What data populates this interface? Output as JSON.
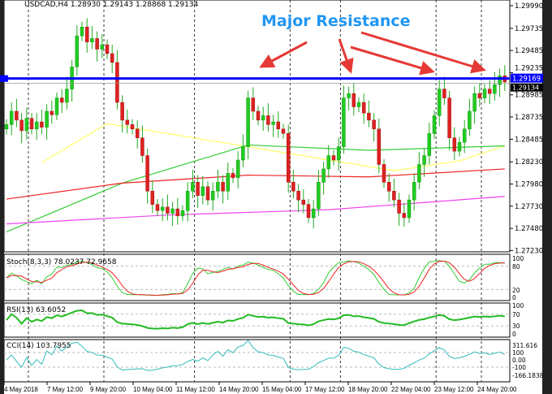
{
  "window": {
    "title": "USDCAD,H4 1.28930 1.29143 1.28868 1.29134"
  },
  "annotation": {
    "label": "Major Resistance",
    "color": "#2196F3",
    "arrow_color": "#E53935"
  },
  "resistance": {
    "price": 1.29169,
    "label": "1.29169",
    "last_label": "1.29134",
    "color": "#0000FF"
  },
  "chart_data": {
    "type": "candlestick",
    "symbol": "USDCAD,H4",
    "ylim": [
      1.2723,
      1.2999
    ],
    "yticks": [
      "1.29990",
      "1.29735",
      "1.29485",
      "1.29235",
      "1.28985",
      "1.28735",
      "1.28485",
      "1.28230",
      "1.27980",
      "1.27730",
      "1.27480",
      "1.27230"
    ],
    "xticks": [
      {
        "i": 0,
        "label": "4 May 2018"
      },
      {
        "i": 9,
        "label": "7 May 12:00"
      },
      {
        "i": 19,
        "label": "9 May 20:00"
      },
      {
        "i": 28,
        "label": "10 May 04:00"
      },
      {
        "i": 38,
        "label": "11 May 12:00"
      },
      {
        "i": 48,
        "label": "14 May 20:00"
      },
      {
        "i": 57,
        "label": "15 May 04:00"
      },
      {
        "i": 67,
        "label": "17 May 12:00"
      },
      {
        "i": 76,
        "label": "18 May 20:00"
      },
      {
        "i": 86,
        "label": "22 May 04:00"
      },
      {
        "i": 95,
        "label": "23 May 12:00"
      },
      {
        "i": 104,
        "label": "24 May 20:00"
      }
    ],
    "closes": [
      1.2865,
      1.288,
      1.287,
      1.2858,
      1.2872,
      1.286,
      1.2868,
      1.2862,
      1.288,
      1.2876,
      1.2895,
      1.289,
      1.2905,
      1.293,
      1.2965,
      1.2975,
      1.2958,
      1.2962,
      1.295,
      1.2955,
      1.2945,
      1.2935,
      1.289,
      1.287,
      1.2865,
      1.286,
      1.285,
      1.283,
      1.279,
      1.2775,
      1.2768,
      1.2772,
      1.2765,
      1.277,
      1.2762,
      1.2768,
      1.279,
      1.28,
      1.2785,
      1.2795,
      1.278,
      1.279,
      1.28,
      1.279,
      1.281,
      1.2805,
      1.2825,
      1.284,
      1.2895,
      1.288,
      1.287,
      1.2875,
      1.2865,
      1.2868,
      1.286,
      1.2855,
      1.28,
      1.279,
      1.278,
      1.2775,
      1.276,
      1.277,
      1.28,
      1.2815,
      1.283,
      1.2825,
      1.284,
      1.2895,
      1.29,
      1.2885,
      1.289,
      1.2878,
      1.287,
      1.286,
      1.282,
      1.28,
      1.279,
      1.278,
      1.2765,
      1.276,
      1.278,
      1.28,
      1.282,
      1.283,
      1.2855,
      1.2875,
      1.2905,
      1.2895,
      1.285,
      1.2835,
      1.2845,
      1.286,
      1.288,
      1.29,
      1.2895,
      1.2905,
      1.29,
      1.291,
      1.292,
      1.2913
    ],
    "moving_averages": [
      {
        "color": "#FFFF66",
        "points": [
          [
            7,
            1.2822
          ],
          [
            20,
            1.2866
          ],
          [
            48,
            1.284
          ],
          [
            77,
            1.2813
          ],
          [
            90,
            1.2824
          ],
          [
            99,
            1.2841
          ]
        ]
      },
      {
        "color": "#33CC33",
        "points": [
          [
            0,
            1.2744
          ],
          [
            23,
            1.2799
          ],
          [
            48,
            1.2842
          ],
          [
            72,
            1.2836
          ],
          [
            99,
            1.2841
          ]
        ]
      },
      {
        "color": "#EE2222",
        "points": [
          [
            0,
            1.2781
          ],
          [
            23,
            1.2799
          ],
          [
            48,
            1.2808
          ],
          [
            72,
            1.2806
          ],
          [
            99,
            1.2815
          ]
        ]
      },
      {
        "color": "#EE44EE",
        "points": [
          [
            0,
            1.2753
          ],
          [
            32,
            1.2763
          ],
          [
            64,
            1.2769
          ],
          [
            99,
            1.2784
          ]
        ]
      }
    ],
    "indicators": {
      "stoch": {
        "label": "Stoch(8,3,3) 78.0237 72.9658",
        "levels": [
          "100",
          "80",
          "20",
          "0"
        ],
        "main_color": "#33CC33",
        "signal_color": "#EE2222"
      },
      "rsi": {
        "label": "RSI(13) 63.6052",
        "levels": [
          "100",
          "70",
          "30",
          "0"
        ],
        "color": "#22BB22"
      },
      "cci": {
        "label": "CCI(14) 103.7955",
        "levels": [
          "311.616",
          "100",
          "0.00",
          "-100",
          "-166.1838"
        ],
        "color": "#33BBBB"
      }
    }
  }
}
